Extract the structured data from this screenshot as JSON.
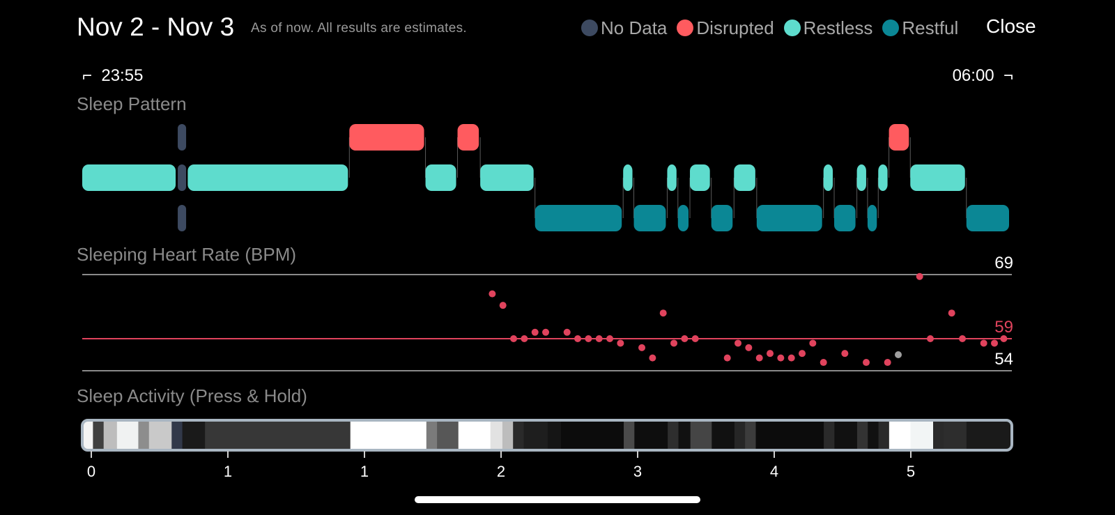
{
  "header": {
    "title": "Nov 2 - Nov 3",
    "subtitle": "As of now. All results are estimates.",
    "close_label": "Close"
  },
  "legend": [
    {
      "label": "No Data",
      "color": "#3d4a61"
    },
    {
      "label": "Disrupted",
      "color": "#ff5b5f"
    },
    {
      "label": "Restless",
      "color": "#5edccd"
    },
    {
      "label": "Restful",
      "color": "#0b8795"
    }
  ],
  "time_range": {
    "start": "23:55",
    "end": "06:00",
    "start_bracket": "⌐",
    "end_bracket": "¬"
  },
  "sections": {
    "sleep_pattern": "Sleep Pattern",
    "heart_rate": "Sleeping Heart Rate (BPM)",
    "activity": "Sleep Activity (Press & Hold)"
  },
  "chart_data": [
    {
      "type": "timeline",
      "title": "Sleep Pattern",
      "x_unit": "hours since start",
      "x_range": [
        0,
        6.08
      ],
      "levels": [
        "Disrupted",
        "Restless",
        "Restful"
      ],
      "segments": [
        {
          "state": "Restless",
          "start": 0.0,
          "end": 0.71
        },
        {
          "state": "No Data",
          "start": 0.71,
          "end": 0.79
        },
        {
          "state": "Restless",
          "start": 0.79,
          "end": 2.0
        },
        {
          "state": "Disrupted",
          "start": 2.0,
          "end": 2.57
        },
        {
          "state": "Restless",
          "start": 2.57,
          "end": 2.81
        },
        {
          "state": "Disrupted",
          "start": 2.81,
          "end": 2.98
        },
        {
          "state": "Restless",
          "start": 2.98,
          "end": 3.39
        },
        {
          "state": "Restful",
          "start": 3.39,
          "end": 4.05
        },
        {
          "state": "Restless",
          "start": 4.05,
          "end": 4.13
        },
        {
          "state": "Restful",
          "start": 4.13,
          "end": 4.38
        },
        {
          "state": "Restless",
          "start": 4.38,
          "end": 4.46
        },
        {
          "state": "Restful",
          "start": 4.46,
          "end": 4.55
        },
        {
          "state": "Restless",
          "start": 4.55,
          "end": 4.71
        },
        {
          "state": "Restful",
          "start": 4.71,
          "end": 4.88
        },
        {
          "state": "Restless",
          "start": 4.88,
          "end": 5.05
        },
        {
          "state": "Restful",
          "start": 5.05,
          "end": 5.55
        },
        {
          "state": "Restless",
          "start": 5.55,
          "end": 5.63
        },
        {
          "state": "Restful",
          "start": 5.63,
          "end": 5.8
        },
        {
          "state": "Restless",
          "start": 5.8,
          "end": 5.88
        },
        {
          "state": "Restful",
          "start": 5.88,
          "end": 5.96
        },
        {
          "state": "Restless",
          "start": 5.96,
          "end": 6.04
        },
        {
          "state": "Disrupted",
          "start": 6.04,
          "end": 6.2
        },
        {
          "state": "Restless",
          "start": 6.2,
          "end": 6.62
        },
        {
          "state": "Restful",
          "start": 6.62,
          "end": 6.95
        }
      ]
    },
    {
      "type": "scatter",
      "title": "Sleeping Heart Rate (BPM)",
      "y_unit": "BPM",
      "y_max": 69,
      "y_avg": 59,
      "y_min": 54,
      "y_labels": [
        "69",
        "59",
        "54"
      ],
      "points": [
        [
          3.07,
          66
        ],
        [
          3.15,
          64.2
        ],
        [
          3.23,
          59
        ],
        [
          3.31,
          59
        ],
        [
          3.39,
          60
        ],
        [
          3.47,
          60
        ],
        [
          3.63,
          60
        ],
        [
          3.71,
          59
        ],
        [
          3.79,
          59
        ],
        [
          3.87,
          59
        ],
        [
          3.95,
          59
        ],
        [
          4.03,
          58.3
        ],
        [
          4.19,
          57.6
        ],
        [
          4.27,
          56
        ],
        [
          4.35,
          63
        ],
        [
          4.43,
          58.3
        ],
        [
          4.51,
          59
        ],
        [
          4.59,
          59
        ],
        [
          4.83,
          56
        ],
        [
          4.91,
          58.3
        ],
        [
          4.99,
          57.6
        ],
        [
          5.07,
          56
        ],
        [
          5.15,
          56.7
        ],
        [
          5.23,
          56
        ],
        [
          5.31,
          56
        ],
        [
          5.39,
          56.7
        ],
        [
          5.47,
          58.3
        ],
        [
          5.55,
          55.3
        ],
        [
          5.71,
          56.7
        ],
        [
          5.87,
          55.3
        ],
        [
          6.03,
          55.3
        ],
        [
          6.11,
          56.5,
          "grey"
        ],
        [
          6.27,
          68.7
        ],
        [
          6.35,
          59
        ],
        [
          6.51,
          63
        ],
        [
          6.59,
          59
        ],
        [
          6.75,
          58.3
        ],
        [
          6.83,
          58.3
        ],
        [
          6.9,
          59
        ]
      ]
    },
    {
      "type": "heatmap",
      "title": "Sleep Activity (Press & Hold)",
      "x_ticks": [
        "0",
        "1",
        "1",
        "2",
        "3",
        "4",
        "5"
      ],
      "x_range": [
        0,
        6.95
      ],
      "cells": [
        {
          "start": 0.0,
          "end": 0.07,
          "shade": "#f4f4f4"
        },
        {
          "start": 0.07,
          "end": 0.15,
          "shade": "#404040"
        },
        {
          "start": 0.15,
          "end": 0.25,
          "shade": "#bdbdbd"
        },
        {
          "start": 0.25,
          "end": 0.41,
          "shade": "#f0f2f2"
        },
        {
          "start": 0.41,
          "end": 0.49,
          "shade": "#8d8d8d"
        },
        {
          "start": 0.49,
          "end": 0.66,
          "shade": "#c9c9c9"
        },
        {
          "start": 0.66,
          "end": 0.74,
          "shade": "#32394a"
        },
        {
          "start": 0.74,
          "end": 0.91,
          "shade": "#1a1a1a"
        },
        {
          "start": 0.91,
          "end": 2.0,
          "shade": "#373737"
        },
        {
          "start": 2.0,
          "end": 2.57,
          "shade": "#ffffff"
        },
        {
          "start": 2.57,
          "end": 2.65,
          "shade": "#7b7b7b"
        },
        {
          "start": 2.65,
          "end": 2.81,
          "shade": "#575757"
        },
        {
          "start": 2.81,
          "end": 3.05,
          "shade": "#ffffff"
        },
        {
          "start": 3.05,
          "end": 3.14,
          "shade": "#e2e2e2"
        },
        {
          "start": 3.14,
          "end": 3.22,
          "shade": "#bdbdbd"
        },
        {
          "start": 3.22,
          "end": 3.3,
          "shade": "#2a2a2a"
        },
        {
          "start": 3.3,
          "end": 3.48,
          "shade": "#1e1e1e"
        },
        {
          "start": 3.48,
          "end": 3.58,
          "shade": "#151515"
        },
        {
          "start": 3.58,
          "end": 4.05,
          "shade": "#0c0c0c"
        },
        {
          "start": 4.05,
          "end": 4.13,
          "shade": "#4a4a4a"
        },
        {
          "start": 4.13,
          "end": 4.38,
          "shade": "#0e0e0e"
        },
        {
          "start": 4.38,
          "end": 4.46,
          "shade": "#2e2e2e"
        },
        {
          "start": 4.46,
          "end": 4.55,
          "shade": "#111111"
        },
        {
          "start": 4.55,
          "end": 4.71,
          "shade": "#454545"
        },
        {
          "start": 4.71,
          "end": 4.88,
          "shade": "#111111"
        },
        {
          "start": 4.88,
          "end": 4.96,
          "shade": "#262626"
        },
        {
          "start": 4.96,
          "end": 5.04,
          "shade": "#3c3c3c"
        },
        {
          "start": 5.04,
          "end": 5.55,
          "shade": "#0c0c0c"
        },
        {
          "start": 5.55,
          "end": 5.63,
          "shade": "#2a2a2a"
        },
        {
          "start": 5.63,
          "end": 5.8,
          "shade": "#111111"
        },
        {
          "start": 5.8,
          "end": 5.88,
          "shade": "#333333"
        },
        {
          "start": 5.88,
          "end": 5.96,
          "shade": "#111111"
        },
        {
          "start": 5.96,
          "end": 6.04,
          "shade": "#2a2a2a"
        },
        {
          "start": 6.04,
          "end": 6.2,
          "shade": "#ffffff"
        },
        {
          "start": 6.2,
          "end": 6.37,
          "shade": "#f2f5f5"
        },
        {
          "start": 6.37,
          "end": 6.45,
          "shade": "#2a2a2a"
        },
        {
          "start": 6.45,
          "end": 6.62,
          "shade": "#2d2d2d"
        },
        {
          "start": 6.62,
          "end": 6.95,
          "shade": "#1a1a1a"
        }
      ]
    }
  ]
}
